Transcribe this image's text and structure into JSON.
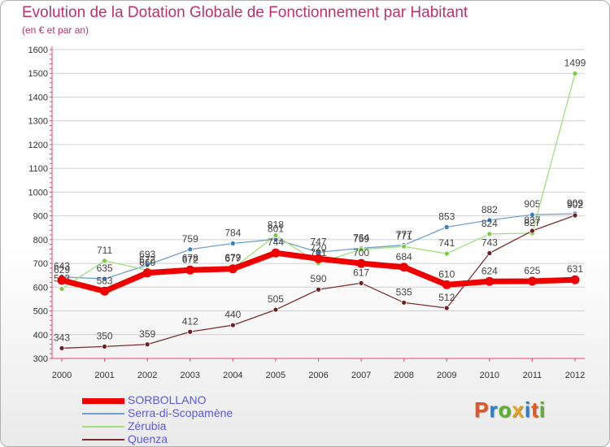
{
  "header": {
    "title": "Evolution de la Dotation Globale de Fonctionnement par Habitant",
    "subtitle": "(en € et par an)"
  },
  "logo": {
    "text": "Proxiti",
    "letters": [
      "P",
      "r",
      "o",
      "x",
      "i",
      "t",
      "i"
    ],
    "colors": [
      "#e8541c",
      "#2a7fd0",
      "#58b32a",
      "#e8a21c",
      "#2a7fd0",
      "#e8541c",
      "#58b32a"
    ]
  },
  "colors": {
    "title": "#c0306e",
    "axis": "#e8457a",
    "grid": "#d0d0d0",
    "legend_text": "#5a5ae0"
  },
  "chart_data": {
    "type": "line",
    "title": "Evolution de la Dotation Globale de Fonctionnement par Habitant",
    "subtitle": "(en € et par an)",
    "x": [
      "2000",
      "2001",
      "2002",
      "2003",
      "2004",
      "2005",
      "2006",
      "2007",
      "2008",
      "2009",
      "2010",
      "2011",
      "2012"
    ],
    "ylim": [
      300,
      1600
    ],
    "yticks": [
      300,
      400,
      500,
      600,
      700,
      800,
      900,
      1000,
      1100,
      1200,
      1300,
      1400,
      1500,
      1600
    ],
    "grid": "horizontal",
    "legend_position": "bottom-left",
    "series": [
      {
        "name": "Serra-di-Scopamène",
        "color": "#6fa0cf",
        "marker": "#3a7fc0",
        "width": 1.3,
        "values": [
          643,
          635,
          693,
          759,
          784,
          801,
          747,
          764,
          777,
          853,
          882,
          905,
          909
        ]
      },
      {
        "name": "Zérubia",
        "color": "#9ee07a",
        "marker": "#7acc40",
        "width": 1.3,
        "values": [
          593,
          711,
          672,
          678,
          679,
          818,
          701,
          759,
          771,
          741,
          824,
          827,
          1499
        ]
      },
      {
        "name": "Quenza",
        "color": "#7a3030",
        "marker": "#6a2020",
        "width": 1.3,
        "values": [
          343,
          350,
          359,
          412,
          440,
          505,
          590,
          617,
          535,
          512,
          743,
          837,
          902
        ]
      },
      {
        "name": "SORBOLLANO",
        "color": "#ee0000",
        "marker": "#ee0000",
        "width": 7,
        "values": [
          629,
          583,
          660,
          672,
          677,
          744,
          720,
          700,
          684,
          610,
          624,
          625,
          631
        ]
      }
    ]
  },
  "legend": {
    "items": [
      {
        "label": "SORBOLLANO",
        "color": "#ee0000",
        "thickness": 7
      },
      {
        "label": "Serra-di-Scopamène",
        "color": "#6fa0cf",
        "thickness": 2
      },
      {
        "label": "Zérubia",
        "color": "#9ee07a",
        "thickness": 2
      },
      {
        "label": "Quenza",
        "color": "#7a3030",
        "thickness": 2
      }
    ]
  }
}
